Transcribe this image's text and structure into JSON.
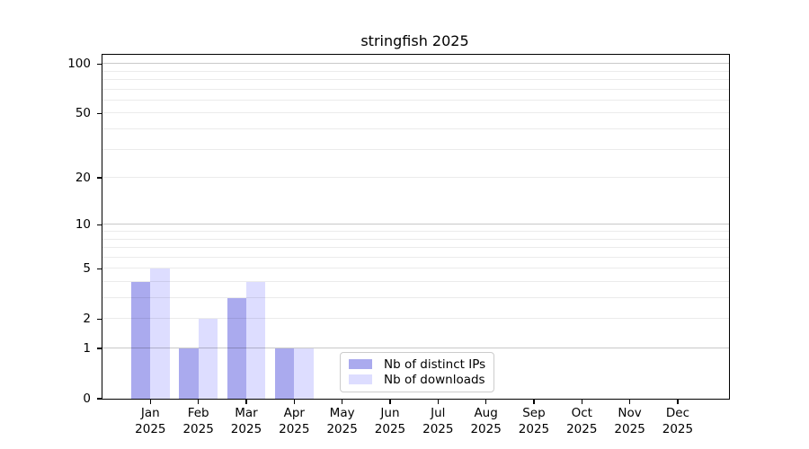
{
  "chart_data": {
    "type": "bar",
    "title": "stringfish 2025",
    "categories": [
      "Jan",
      "Feb",
      "Mar",
      "Apr",
      "May",
      "Jun",
      "Jul",
      "Aug",
      "Sep",
      "Oct",
      "Nov",
      "Dec"
    ],
    "x_tick_labels": [
      [
        "Jan",
        "2025"
      ],
      [
        "Feb",
        "2025"
      ],
      [
        "Mar",
        "2025"
      ],
      [
        "Apr",
        "2025"
      ],
      [
        "May",
        "2025"
      ],
      [
        "Jun",
        "2025"
      ],
      [
        "Jul",
        "2025"
      ],
      [
        "Aug",
        "2025"
      ],
      [
        "Sep",
        "2025"
      ],
      [
        "Oct",
        "2025"
      ],
      [
        "Nov",
        "2025"
      ],
      [
        "Dec",
        "2025"
      ]
    ],
    "series": [
      {
        "name": "Nb of distinct IPs",
        "color": "#aaaaee",
        "values": [
          4,
          1,
          3,
          1,
          0,
          0,
          0,
          0,
          0,
          0,
          0,
          0
        ]
      },
      {
        "name": "Nb of downloads",
        "color": "#ddddff",
        "values": [
          5,
          2,
          4,
          1,
          0,
          0,
          0,
          0,
          0,
          0,
          0,
          0
        ]
      }
    ],
    "y_scale": "log1p",
    "y_ticks": [
      0,
      1,
      2,
      5,
      10,
      20,
      50,
      100
    ],
    "y_major_gridlines": [
      1,
      10,
      100
    ],
    "y_minor_gridlines": [
      2,
      3,
      4,
      5,
      6,
      7,
      8,
      9,
      20,
      30,
      40,
      50,
      60,
      70,
      80,
      90
    ],
    "ylim": [
      0,
      113.6
    ],
    "grid": "on",
    "legend_position": "lower center",
    "xlabel": "",
    "ylabel": ""
  }
}
